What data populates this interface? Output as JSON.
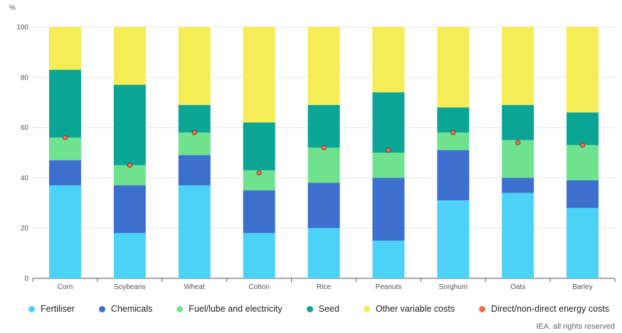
{
  "chart_data": {
    "type": "bar",
    "stacked": true,
    "ylabel": "%",
    "ylim": [
      0,
      100
    ],
    "yticks": [
      0,
      20,
      40,
      60,
      80,
      100
    ],
    "grid": true,
    "legend_position": "bottom",
    "categories": [
      "Corn",
      "Soybeans",
      "Wheat",
      "Cotton",
      "Rice",
      "Peanuts",
      "Sorghum",
      "Oats",
      "Barley"
    ],
    "series": [
      {
        "name": "Fertiliser",
        "color": "#4dd2f7",
        "values": [
          37,
          18,
          37,
          18,
          20,
          15,
          31,
          34,
          28
        ]
      },
      {
        "name": "Chemicals",
        "color": "#3d6fcf",
        "values": [
          10,
          19,
          12,
          17,
          18,
          25,
          20,
          6,
          11
        ]
      },
      {
        "name": "Fuel/lube and electricity",
        "color": "#6ee28f",
        "values": [
          9,
          8,
          9,
          8,
          14,
          10,
          7,
          15,
          14
        ]
      },
      {
        "name": "Seed",
        "color": "#0aa594",
        "values": [
          27,
          32,
          11,
          19,
          17,
          24,
          10,
          14,
          13
        ]
      },
      {
        "name": "Other variable costs",
        "color": "#f5ed55",
        "values": [
          17,
          23,
          31,
          38,
          31,
          26,
          32,
          31,
          34
        ]
      }
    ],
    "points": {
      "name": "Direct/non-direct energy costs",
      "color": "#f07050",
      "values": [
        56,
        45,
        58,
        42,
        52,
        51,
        58,
        54,
        53
      ]
    }
  },
  "credit": "IEA. all rights reserved"
}
